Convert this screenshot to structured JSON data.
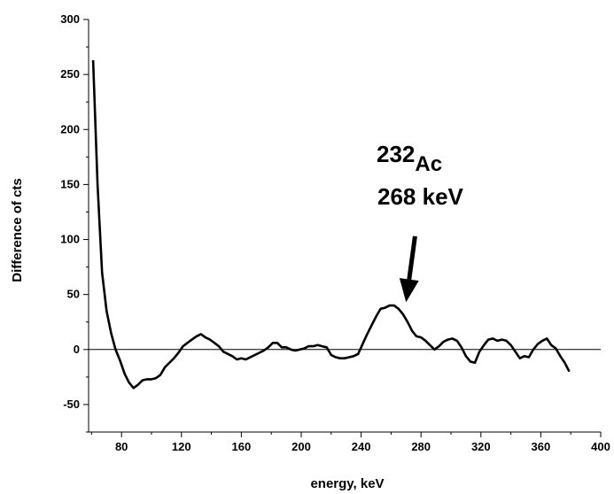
{
  "chart_data": {
    "type": "line",
    "xlabel": "energy, keV",
    "ylabel": "Difference of cts",
    "xlim": [
      58,
      400
    ],
    "ylim": [
      -75,
      300
    ],
    "x_ticks": [
      80,
      120,
      160,
      200,
      240,
      280,
      320,
      360,
      400
    ],
    "y_ticks": [
      -50,
      0,
      50,
      100,
      150,
      200,
      250,
      300
    ],
    "zero_line": true,
    "grid": false,
    "annotation": {
      "mass_number": "232",
      "element": "Ac",
      "energy_label": "268 keV",
      "arrow_from": [
        276,
        103
      ],
      "arrow_to": [
        270,
        43
      ]
    },
    "series": [
      {
        "color": "#000000",
        "points": [
          [
            61,
            263
          ],
          [
            64,
            150
          ],
          [
            67,
            70
          ],
          [
            70,
            35
          ],
          [
            73,
            15
          ],
          [
            76,
            0
          ],
          [
            79,
            -10
          ],
          [
            82,
            -22
          ],
          [
            85,
            -30
          ],
          [
            88,
            -35
          ],
          [
            91,
            -32
          ],
          [
            94,
            -28
          ],
          [
            97,
            -27
          ],
          [
            100,
            -27
          ],
          [
            103,
            -26
          ],
          [
            106,
            -23
          ],
          [
            109,
            -16
          ],
          [
            112,
            -12
          ],
          [
            115,
            -8
          ],
          [
            118,
            -3
          ],
          [
            121,
            3
          ],
          [
            124,
            6
          ],
          [
            127,
            9
          ],
          [
            130,
            12
          ],
          [
            133,
            14
          ],
          [
            136,
            11
          ],
          [
            139,
            9
          ],
          [
            142,
            6
          ],
          [
            145,
            3
          ],
          [
            148,
            -2
          ],
          [
            151,
            -4
          ],
          [
            154,
            -6
          ],
          [
            157,
            -9
          ],
          [
            160,
            -8
          ],
          [
            163,
            -9
          ],
          [
            166,
            -7
          ],
          [
            169,
            -5
          ],
          [
            172,
            -3
          ],
          [
            175,
            -1
          ],
          [
            178,
            2
          ],
          [
            181,
            6
          ],
          [
            184,
            6
          ],
          [
            187,
            2
          ],
          [
            190,
            2
          ],
          [
            193,
            0
          ],
          [
            196,
            -1
          ],
          [
            199,
            0
          ],
          [
            202,
            1
          ],
          [
            205,
            3
          ],
          [
            208,
            3
          ],
          [
            211,
            4
          ],
          [
            214,
            3
          ],
          [
            217,
            2
          ],
          [
            220,
            -5
          ],
          [
            223,
            -7
          ],
          [
            226,
            -8
          ],
          [
            229,
            -8
          ],
          [
            232,
            -7
          ],
          [
            235,
            -6
          ],
          [
            238,
            -4
          ],
          [
            241,
            5
          ],
          [
            244,
            14
          ],
          [
            247,
            22
          ],
          [
            250,
            30
          ],
          [
            253,
            37
          ],
          [
            256,
            38
          ],
          [
            259,
            40
          ],
          [
            262,
            40
          ],
          [
            265,
            37
          ],
          [
            268,
            32
          ],
          [
            271,
            25
          ],
          [
            274,
            17
          ],
          [
            277,
            12
          ],
          [
            280,
            11
          ],
          [
            283,
            8
          ],
          [
            286,
            4
          ],
          [
            289,
            0
          ],
          [
            292,
            3
          ],
          [
            295,
            7
          ],
          [
            298,
            9
          ],
          [
            301,
            10
          ],
          [
            304,
            8
          ],
          [
            307,
            2
          ],
          [
            310,
            -6
          ],
          [
            313,
            -11
          ],
          [
            316,
            -12
          ],
          [
            319,
            -2
          ],
          [
            322,
            4
          ],
          [
            325,
            9
          ],
          [
            328,
            10
          ],
          [
            331,
            8
          ],
          [
            334,
            9
          ],
          [
            337,
            8
          ],
          [
            340,
            4
          ],
          [
            343,
            -2
          ],
          [
            346,
            -8
          ],
          [
            349,
            -6
          ],
          [
            352,
            -7
          ],
          [
            355,
            0
          ],
          [
            358,
            5
          ],
          [
            361,
            8
          ],
          [
            364,
            10
          ],
          [
            367,
            4
          ],
          [
            370,
            1
          ],
          [
            373,
            -6
          ],
          [
            376,
            -12
          ],
          [
            379,
            -20
          ]
        ]
      }
    ]
  }
}
